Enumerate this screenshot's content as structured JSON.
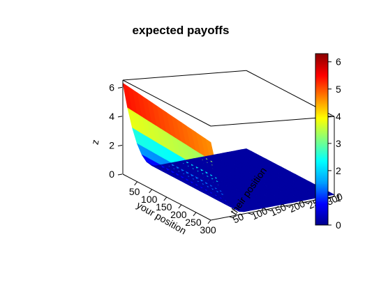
{
  "chart_data": {
    "type": "surface3d",
    "title": "expected payoffs",
    "xlabel": "your position",
    "ylabel": "their position",
    "zlabel": "z",
    "x_ticks": [
      50,
      100,
      150,
      200,
      250,
      300
    ],
    "y_ticks": [
      50,
      100,
      150,
      200,
      250,
      300
    ],
    "z_ticks": [
      0,
      2,
      4,
      6
    ],
    "xlim": [
      1,
      300
    ],
    "ylim": [
      1,
      330
    ],
    "zlim": [
      0,
      6.5
    ],
    "colorbar": {
      "min": 0,
      "max": 6.3,
      "ticks": [
        0,
        1,
        2,
        3,
        4,
        5,
        6
      ],
      "palette": "jet",
      "colors": [
        "#00008b",
        "#0000ff",
        "#00a0ff",
        "#00ffff",
        "#80ff80",
        "#ffff00",
        "#ff8000",
        "#ff0000",
        "#8b0000"
      ]
    },
    "surface_description_values": {
      "x_axis_nonzero_region_max_y": 90,
      "peak_z": 6.3,
      "peak_at": {
        "x": 1,
        "y": 1
      },
      "flat_region_z": 0.15
    },
    "grid": false
  }
}
